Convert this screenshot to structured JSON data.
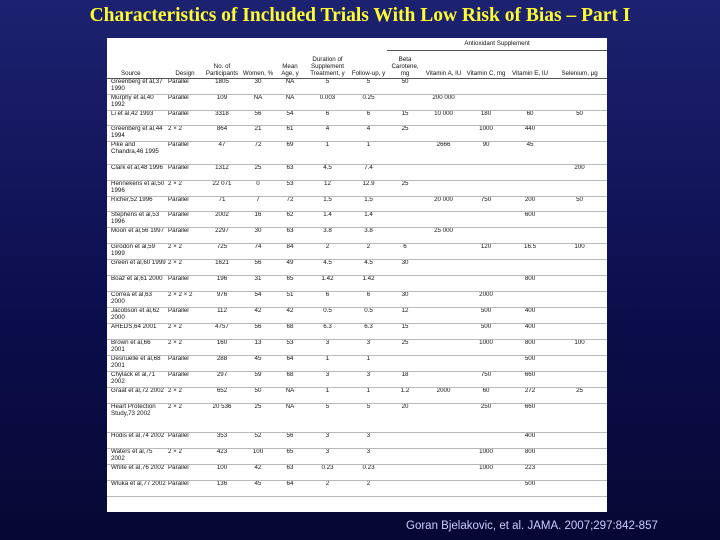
{
  "title": "Characteristics of Included Trials With Low Risk of Bias – Part I",
  "group_header": "Antioxidant Supplement",
  "columns": [
    "Source",
    "Design",
    "No. of Participants",
    "Women, %",
    "Mean Age, y",
    "Duration of Supplement Treatment, y",
    "Follow-up, y",
    "Beta Carotene, mg",
    "Vitamin A, IU",
    "Vitamin C, mg",
    "Vitamin E, IU",
    "Selenium, µg"
  ],
  "rows": [
    [
      "Greenberg et al,37 1990",
      "Parallel",
      "1805",
      "30",
      "NA",
      "5",
      "5",
      "50",
      "",
      "",
      "",
      ""
    ],
    [
      "Murphy et al,40 1992",
      "Parallel",
      "109",
      "NA",
      "NA",
      "0.003",
      "0.25",
      "",
      "200 000",
      "",
      "",
      ""
    ],
    [
      "Li et al,42 1993",
      "Parallel",
      "3318",
      "56",
      "54",
      "6",
      "6",
      "15",
      "10 000",
      "180",
      "60",
      "50"
    ],
    [
      "Greenberg et al,44 1994",
      "2 × 2",
      "864",
      "21",
      "61",
      "4",
      "4",
      "25",
      "",
      "1000",
      "440",
      ""
    ],
    [
      "Pike and Chandra,46 1995",
      "Parallel",
      "47",
      "72",
      "69",
      "1",
      "1",
      "",
      "2666",
      "90",
      "45",
      ""
    ],
    [
      "Clark et al,48 1996",
      "Parallel",
      "1312",
      "25",
      "63",
      "4.5",
      "7.4",
      "",
      "",
      "",
      "",
      "200"
    ],
    [
      "Hennekens et al,50 1996",
      "2 × 2",
      "22 071",
      "0",
      "53",
      "12",
      "12.9",
      "25",
      "",
      "",
      "",
      ""
    ],
    [
      "Richer,52 1996",
      "Parallel",
      "71",
      "7",
      "72",
      "1.5",
      "1.5",
      "",
      "20 000",
      "750",
      "200",
      "50"
    ],
    [
      "Stephens et al,53 1996",
      "Parallel",
      "2002",
      "16",
      "62",
      "1.4",
      "1.4",
      "",
      "",
      "",
      "600",
      ""
    ],
    [
      "Moon et al,56 1997",
      "Parallel",
      "2297",
      "30",
      "63",
      "3.8",
      "3.8",
      "",
      "25 000",
      "",
      "",
      ""
    ],
    [
      "Girodon et al,59 1999",
      "2 × 2",
      "725",
      "74",
      "84",
      "2",
      "2",
      "6",
      "",
      "120",
      "16.5",
      "100"
    ],
    [
      "Green et al,60 1999",
      "2 × 2",
      "1621",
      "56",
      "49",
      "4.5",
      "4.5",
      "30",
      "",
      "",
      "",
      ""
    ],
    [
      "Boaz et al,61 2000",
      "Parallel",
      "196",
      "31",
      "65",
      "1.42",
      "1.42",
      "",
      "",
      "",
      "800",
      ""
    ],
    [
      "Correa et al,63 2000",
      "2 × 2 × 2",
      "976",
      "54",
      "51",
      "6",
      "6",
      "30",
      "",
      "2000",
      "",
      ""
    ],
    [
      "Jacobson et al,62 2000",
      "Parallel",
      "112",
      "42",
      "42",
      "0.5",
      "0.5",
      "12",
      "",
      "500",
      "400",
      ""
    ],
    [
      "AREDS,64 2001",
      "2 × 2",
      "4757",
      "56",
      "68",
      "6.3",
      "6.3",
      "15",
      "",
      "500",
      "400",
      ""
    ],
    [
      "Brown et al,66 2001",
      "2 × 2",
      "160",
      "13",
      "53",
      "3",
      "3",
      "25",
      "",
      "1000",
      "800",
      "100"
    ],
    [
      "Desnuelle et al,68 2001",
      "Parallel",
      "288",
      "45",
      "64",
      "1",
      "1",
      "",
      "",
      "",
      "500",
      ""
    ],
    [
      "Chylack et al,71 2002",
      "Parallel",
      "297",
      "59",
      "68",
      "3",
      "3",
      "18",
      "",
      "750",
      "660",
      ""
    ],
    [
      "Graat et al,72 2002",
      "2 × 2",
      "652",
      "50",
      "NA",
      "1",
      "1",
      "1.2",
      "2000",
      "60",
      "272",
      "25"
    ],
    [
      "Heart Protection Study,73 2002",
      "2 × 2",
      "20 536",
      "25",
      "NA",
      "5",
      "5",
      "20",
      "",
      "250",
      "660",
      ""
    ],
    [
      "Hodis et al,74 2002",
      "Parallel",
      "353",
      "52",
      "56",
      "3",
      "3",
      "",
      "",
      "",
      "400",
      ""
    ],
    [
      "Waters et al,75 2002",
      "2 × 2",
      "423",
      "100",
      "65",
      "3",
      "3",
      "",
      "",
      "1000",
      "800",
      ""
    ],
    [
      "White et al,76 2002",
      "Parallel",
      "100",
      "42",
      "63",
      "0.23",
      "0.23",
      "",
      "",
      "1000",
      "223",
      ""
    ],
    [
      "Wluka et al,77 2002",
      "Parallel",
      "136",
      "45",
      "64",
      "2",
      "2",
      "",
      "",
      "",
      "500",
      ""
    ]
  ],
  "citation": "Goran Bjelakovic, et al. JAMA. 2007;297:842-857"
}
